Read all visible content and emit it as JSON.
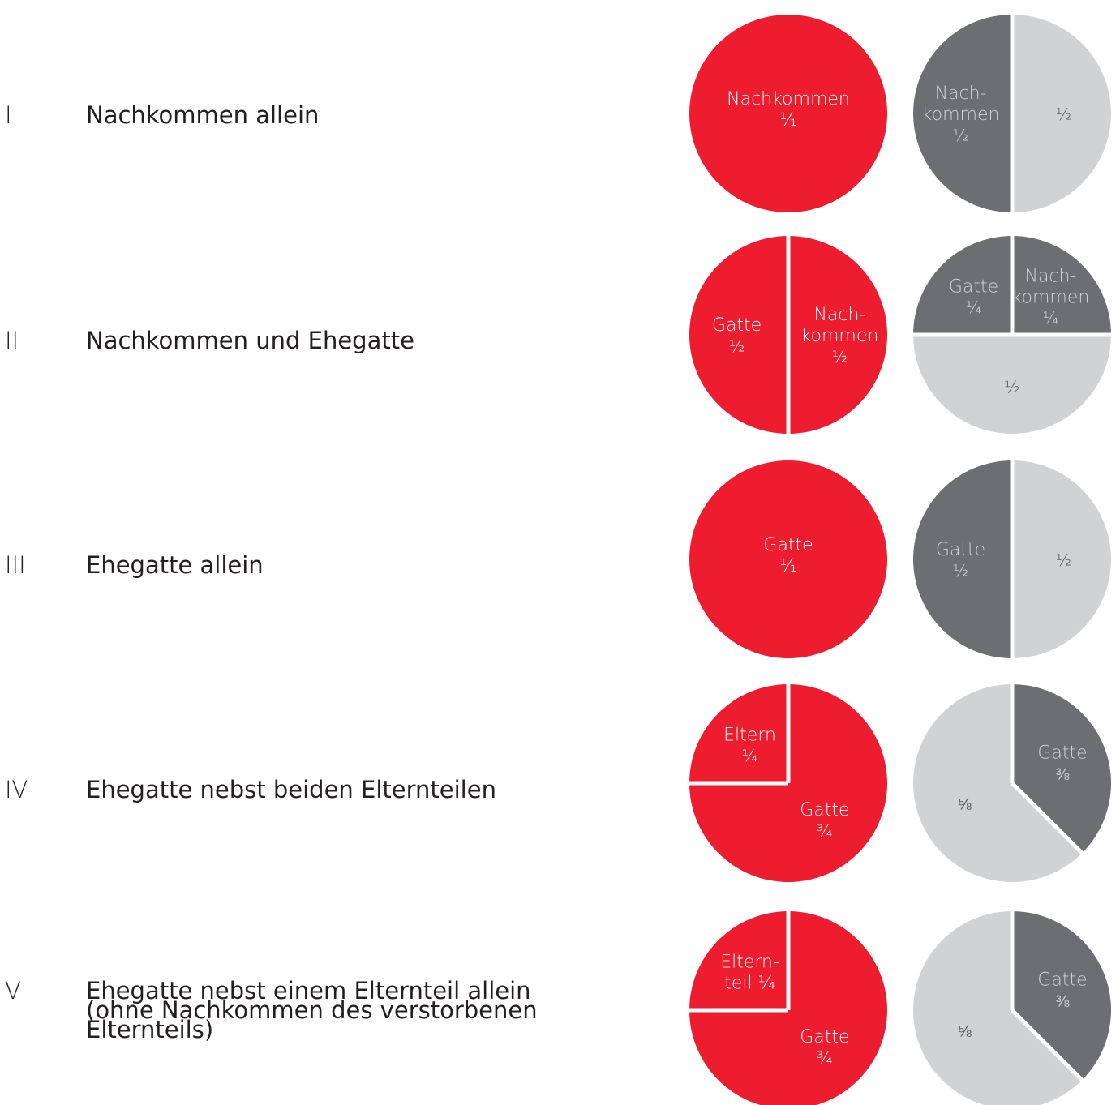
{
  "colors": {
    "red": "#ed1c2e",
    "dark": "#6d6e71",
    "light": "#d1d2d4",
    "separator": "#ffffff",
    "text_on_red": "#ffffff",
    "text_on_dark": "#d1d2d4",
    "text_on_light": "#58595b"
  },
  "rows": [
    {
      "roman": "I",
      "label": [
        "Nachkommen allein"
      ]
    },
    {
      "roman": "II",
      "label": [
        "Nachkommen und Ehegatte"
      ]
    },
    {
      "roman": "III",
      "label": [
        "Ehegatte allein"
      ]
    },
    {
      "roman": "IV",
      "label": [
        "Ehegatte nebst beiden Elternteilen"
      ]
    },
    {
      "roman": "V",
      "label": [
        "Ehegatte nebst einem Elternteil allein",
        "(ohne Nachkommen des verstorbenen",
        "Elternteils)"
      ]
    }
  ],
  "chart_data": [
    {
      "type": "pie",
      "row": "I",
      "which": "left",
      "slices": [
        {
          "value": 1,
          "color": "red",
          "label": [
            "Nachkommen",
            "¹⁄₁"
          ]
        }
      ]
    },
    {
      "type": "pie",
      "row": "I",
      "which": "right",
      "slices": [
        {
          "value": 0.5,
          "color": "light",
          "label": [
            "½"
          ]
        },
        {
          "value": 0.5,
          "color": "dark",
          "label": [
            "Nach-",
            "kommen",
            "½"
          ]
        }
      ]
    },
    {
      "type": "pie",
      "row": "II",
      "which": "left",
      "slices": [
        {
          "value": 0.5,
          "color": "red",
          "label": [
            "Nach-",
            "kommen",
            "½"
          ]
        },
        {
          "value": 0.5,
          "color": "red",
          "label": [
            "Gatte",
            "½"
          ]
        }
      ]
    },
    {
      "type": "pie",
      "row": "II",
      "which": "right",
      "slices": [
        {
          "value": 0.25,
          "color": "dark",
          "label": [
            "Nach-",
            "kommen",
            "¼"
          ]
        },
        {
          "value": 0.5,
          "color": "light",
          "label": [
            "½"
          ]
        },
        {
          "value": 0.25,
          "color": "dark",
          "label": [
            "Gatte",
            "¼"
          ]
        }
      ]
    },
    {
      "type": "pie",
      "row": "III",
      "which": "left",
      "slices": [
        {
          "value": 1,
          "color": "red",
          "label": [
            "Gatte",
            "¹⁄₁"
          ]
        }
      ]
    },
    {
      "type": "pie",
      "row": "III",
      "which": "right",
      "slices": [
        {
          "value": 0.5,
          "color": "light",
          "label": [
            "½"
          ]
        },
        {
          "value": 0.5,
          "color": "dark",
          "label": [
            "Gatte",
            "½"
          ]
        }
      ]
    },
    {
      "type": "pie",
      "row": "IV",
      "which": "left",
      "slices": [
        {
          "value": 0.75,
          "color": "red",
          "label": [
            "Gatte",
            "¾"
          ]
        },
        {
          "value": 0.25,
          "color": "red",
          "label": [
            "Eltern",
            "¼"
          ]
        }
      ]
    },
    {
      "type": "pie",
      "row": "IV",
      "which": "right",
      "slices": [
        {
          "value": 0.375,
          "color": "dark",
          "label": [
            "Gatte",
            "⅜"
          ]
        },
        {
          "value": 0.625,
          "color": "light",
          "label": [
            "⅝"
          ]
        }
      ]
    },
    {
      "type": "pie",
      "row": "V",
      "which": "left",
      "slices": [
        {
          "value": 0.75,
          "color": "red",
          "label": [
            "Gatte",
            "¾"
          ]
        },
        {
          "value": 0.25,
          "color": "red",
          "label": [
            "Eltern-",
            "teil ¼"
          ]
        }
      ]
    },
    {
      "type": "pie",
      "row": "V",
      "which": "right",
      "slices": [
        {
          "value": 0.375,
          "color": "dark",
          "label": [
            "Gatte",
            "⅜"
          ]
        },
        {
          "value": 0.625,
          "color": "light",
          "label": [
            "⅝"
          ]
        }
      ]
    }
  ]
}
